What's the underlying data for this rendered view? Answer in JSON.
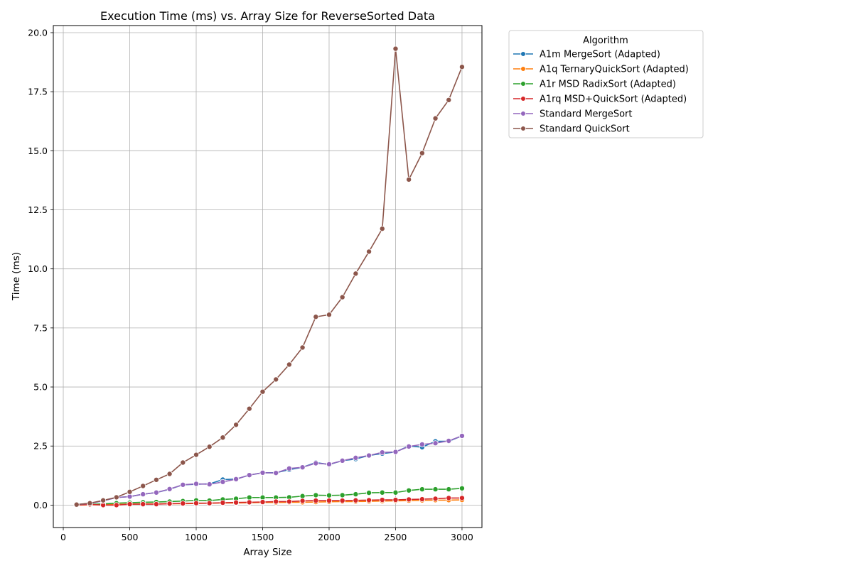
{
  "chart_data": {
    "type": "line",
    "title": "Execution Time (ms) vs. Array Size for ReverseSorted Data",
    "xlabel": "Array Size",
    "ylabel": "Time (ms)",
    "xlim": [
      -75,
      3150
    ],
    "ylim": [
      -0.95,
      20.3
    ],
    "xticks": [
      0,
      500,
      1000,
      1500,
      2000,
      2500,
      3000
    ],
    "yticks": [
      0.0,
      2.5,
      5.0,
      7.5,
      10.0,
      12.5,
      15.0,
      17.5,
      20.0
    ],
    "ytick_labels": [
      "0.0",
      "2.5",
      "5.0",
      "7.5",
      "10.0",
      "12.5",
      "15.0",
      "17.5",
      "20.0"
    ],
    "grid": true,
    "legend": {
      "title": "Algorithm",
      "placement": "outside-top-right"
    },
    "x": [
      100,
      200,
      300,
      400,
      500,
      600,
      700,
      800,
      900,
      1000,
      1100,
      1200,
      1300,
      1400,
      1500,
      1600,
      1700,
      1800,
      1900,
      2000,
      2100,
      2200,
      2300,
      2400,
      2500,
      2600,
      2700,
      2800,
      2900,
      3000
    ],
    "series": [
      {
        "name": "A1m MergeSort (Adapted)",
        "color": "#1f77b4",
        "values": [
          0.02,
          0.07,
          0.18,
          0.32,
          0.36,
          0.46,
          0.53,
          0.67,
          0.86,
          0.88,
          0.9,
          1.08,
          1.1,
          1.27,
          1.37,
          1.37,
          1.5,
          1.6,
          1.8,
          1.72,
          1.88,
          1.95,
          2.1,
          2.18,
          2.25,
          2.5,
          2.45,
          2.7,
          2.7,
          2.93
        ]
      },
      {
        "name": "A1q TernaryQuickSort (Adapted)",
        "color": "#ff7f0e",
        "values": [
          0.0,
          0.01,
          0.02,
          0.03,
          0.04,
          0.05,
          0.05,
          0.06,
          0.06,
          0.07,
          0.08,
          0.09,
          0.09,
          0.1,
          0.11,
          0.11,
          0.12,
          0.12,
          0.13,
          0.14,
          0.15,
          0.15,
          0.16,
          0.17,
          0.18,
          0.19,
          0.2,
          0.21,
          0.21,
          0.22
        ]
      },
      {
        "name": "A1r MSD RadixSort (Adapted)",
        "color": "#2ca02c",
        "values": [
          0.02,
          0.03,
          0.05,
          0.08,
          0.1,
          0.12,
          0.13,
          0.15,
          0.17,
          0.2,
          0.19,
          0.24,
          0.27,
          0.32,
          0.32,
          0.32,
          0.33,
          0.38,
          0.42,
          0.41,
          0.42,
          0.46,
          0.52,
          0.53,
          0.53,
          0.62,
          0.67,
          0.67,
          0.67,
          0.71
        ]
      },
      {
        "name": "A1rq MSD+QuickSort (Adapted)",
        "color": "#d62728",
        "values": [
          0.0,
          0.03,
          0.0,
          0.0,
          0.04,
          0.04,
          0.04,
          0.06,
          0.07,
          0.08,
          0.08,
          0.1,
          0.11,
          0.12,
          0.13,
          0.15,
          0.15,
          0.18,
          0.19,
          0.19,
          0.19,
          0.2,
          0.21,
          0.22,
          0.22,
          0.24,
          0.25,
          0.27,
          0.3,
          0.3
        ]
      },
      {
        "name": "Standard MergeSort",
        "color": "#9467bd",
        "values": [
          0.02,
          0.07,
          0.18,
          0.32,
          0.36,
          0.46,
          0.53,
          0.68,
          0.86,
          0.9,
          0.88,
          0.98,
          1.1,
          1.27,
          1.37,
          1.36,
          1.55,
          1.6,
          1.77,
          1.73,
          1.88,
          2.0,
          2.1,
          2.23,
          2.25,
          2.48,
          2.57,
          2.62,
          2.72,
          2.93
        ]
      },
      {
        "name": "Standard QuickSort",
        "color": "#8c564b",
        "values": [
          0.02,
          0.08,
          0.2,
          0.33,
          0.56,
          0.81,
          1.07,
          1.32,
          1.8,
          2.13,
          2.47,
          2.86,
          3.4,
          4.08,
          4.8,
          5.32,
          5.95,
          6.67,
          7.97,
          8.06,
          8.8,
          9.8,
          10.73,
          11.7,
          19.32,
          13.78,
          14.9,
          16.37,
          17.15,
          18.55
        ]
      }
    ]
  }
}
